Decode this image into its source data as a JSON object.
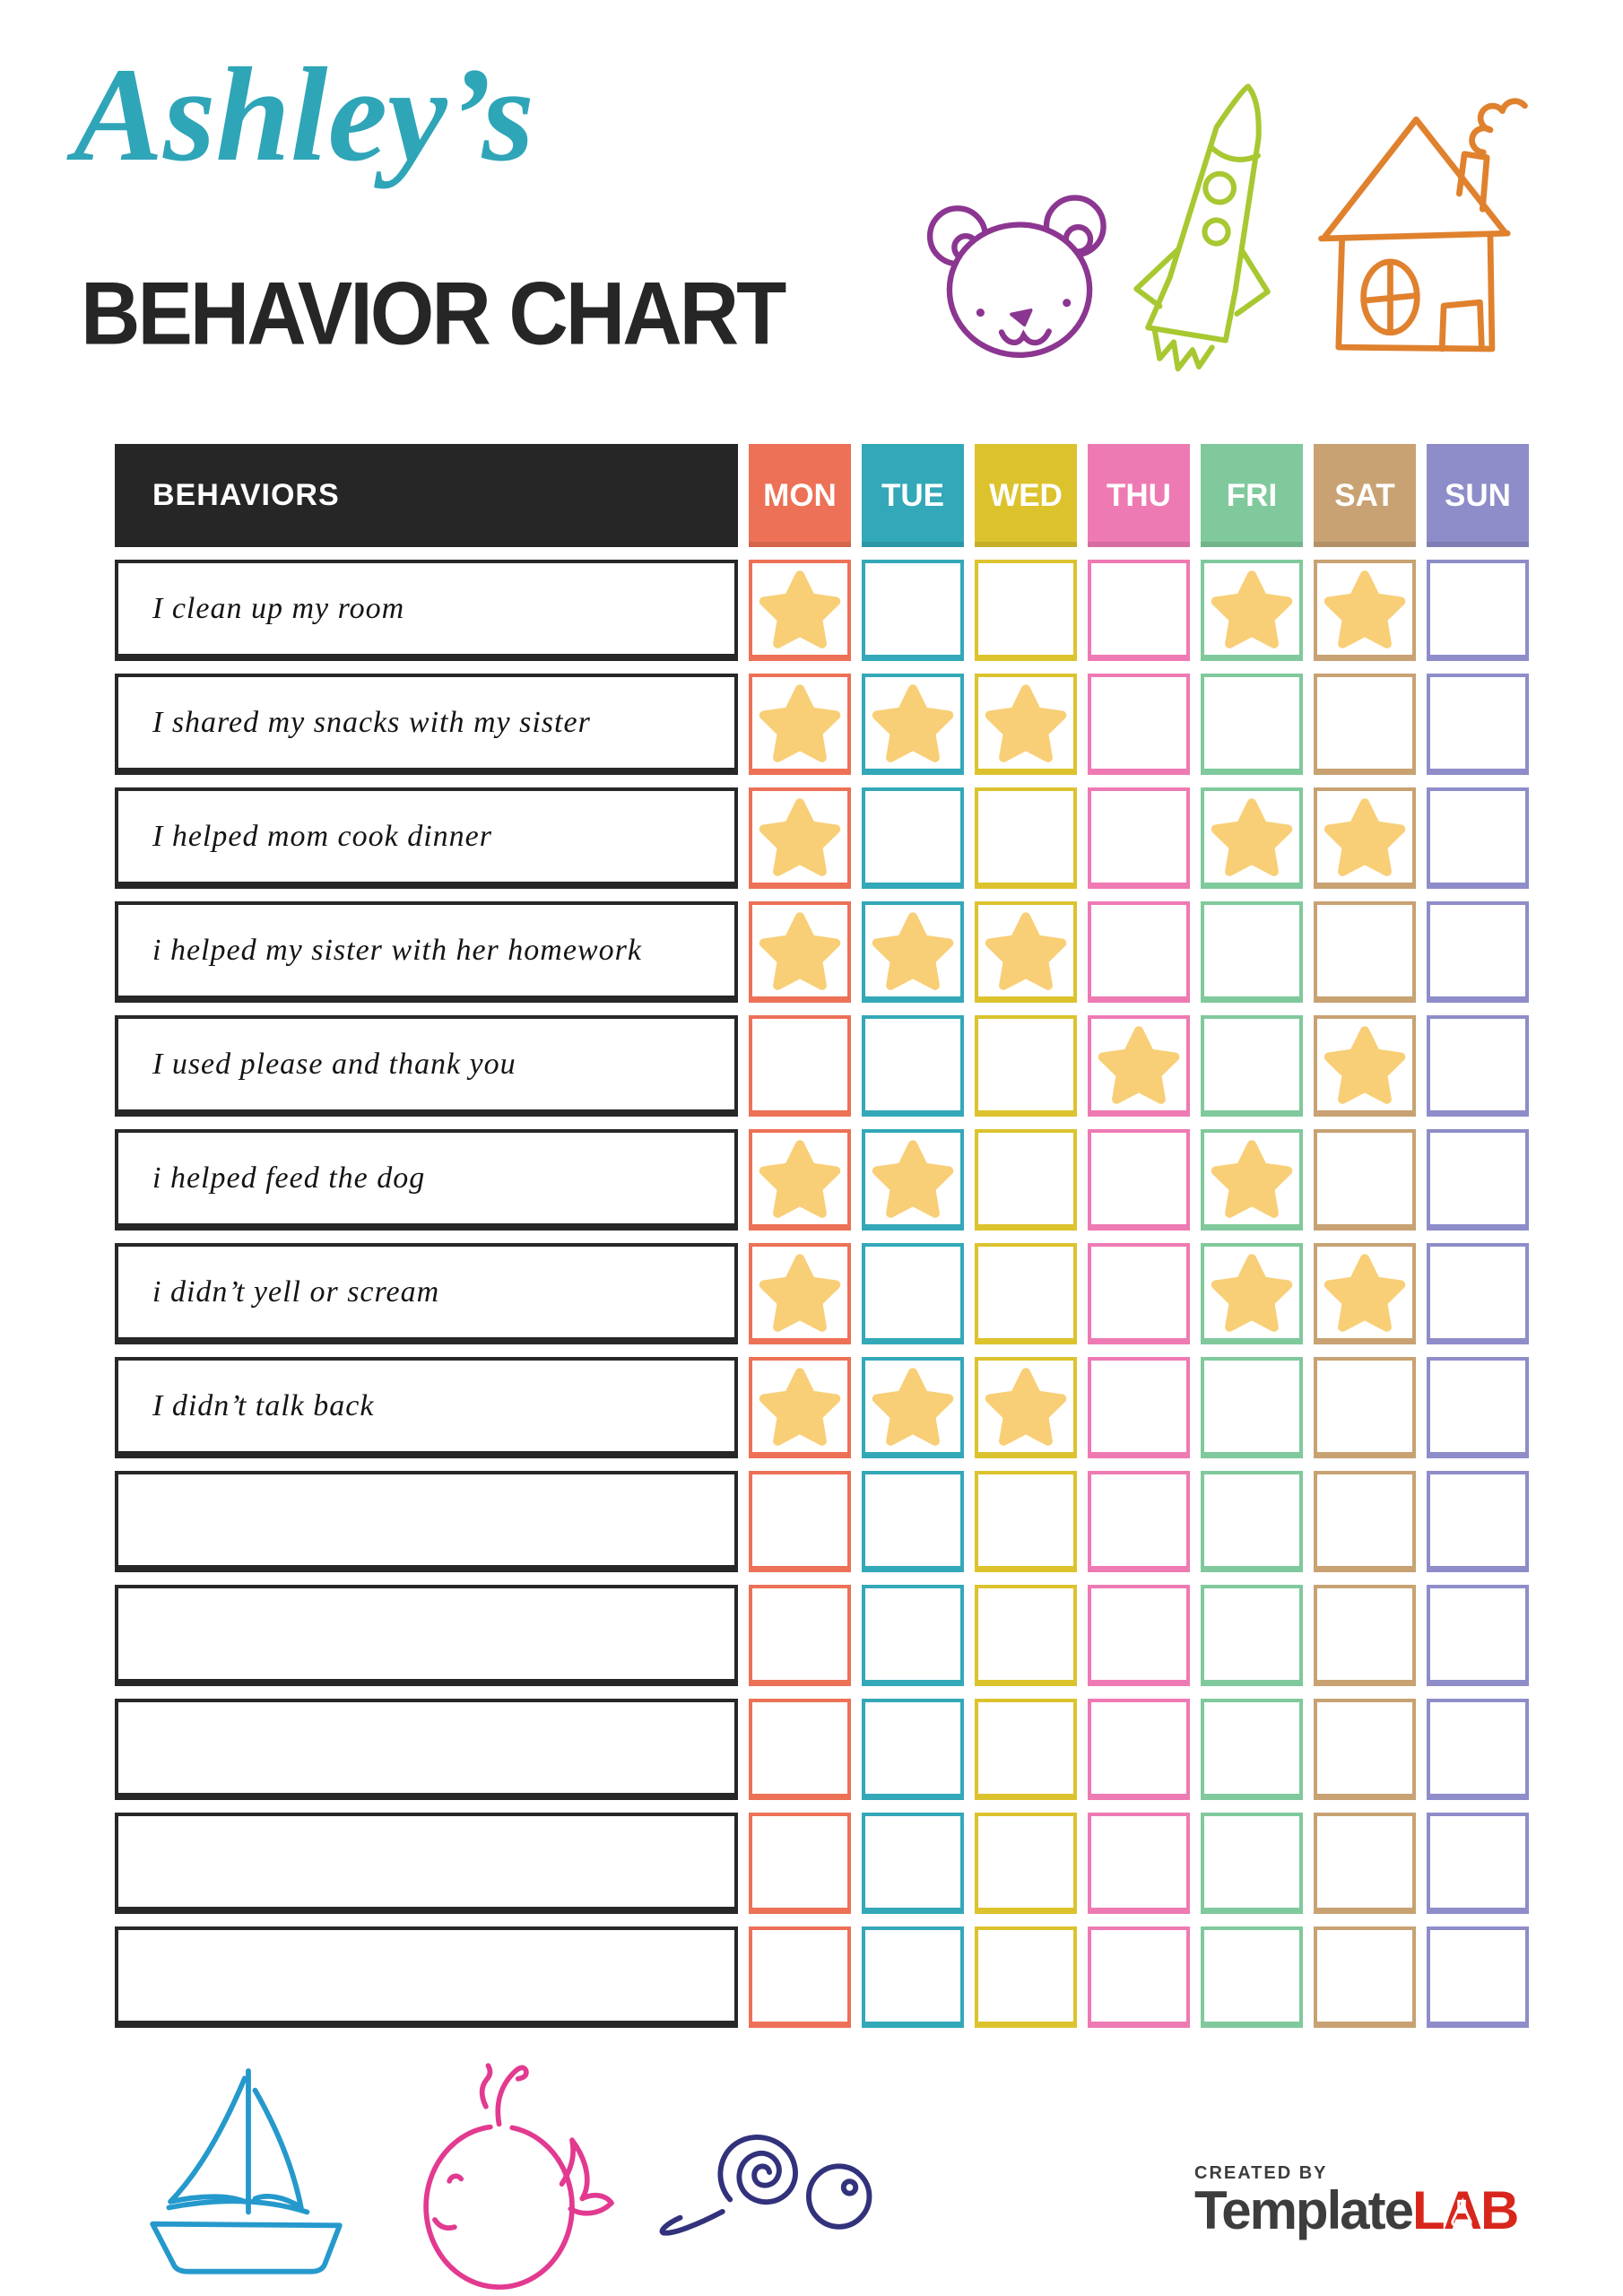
{
  "header": {
    "title_script": "Ashley’s",
    "title_main": "BEHAVIOR CHART",
    "title_script_color": "#2fa5b8",
    "title_main_color": "#262626"
  },
  "doodles": {
    "bear_color": "#8b3690",
    "rocket_color": "#a8c832",
    "house_color": "#e0812e",
    "boat_color": "#2599cc",
    "whale_color": "#e23a90",
    "snail_color": "#32327c"
  },
  "table": {
    "behaviors_header": "BEHAVIORS",
    "header_bg": "#262626",
    "star_color": "#f8cf77",
    "days": [
      {
        "label": "MON",
        "color": "#ec7156"
      },
      {
        "label": "TUE",
        "color": "#33a8b8"
      },
      {
        "label": "WED",
        "color": "#dcc32e"
      },
      {
        "label": "THU",
        "color": "#ee7ab3"
      },
      {
        "label": "FRI",
        "color": "#80c99c"
      },
      {
        "label": "SAT",
        "color": "#c8a273"
      },
      {
        "label": "SUN",
        "color": "#8e8dc9"
      }
    ],
    "rows": [
      {
        "label": "I clean up my room",
        "stars": [
          "MON",
          "FRI",
          "SAT"
        ]
      },
      {
        "label": "I shared my snacks with my sister",
        "stars": [
          "MON",
          "TUE",
          "WED"
        ]
      },
      {
        "label": "I helped mom cook dinner",
        "stars": [
          "MON",
          "FRI",
          "SAT"
        ]
      },
      {
        "label": "i helped my sister with her homework",
        "stars": [
          "MON",
          "TUE",
          "WED"
        ]
      },
      {
        "label": "I used please and thank you",
        "stars": [
          "THU",
          "SAT"
        ]
      },
      {
        "label": "i helped feed the dog",
        "stars": [
          "MON",
          "TUE",
          "FRI"
        ]
      },
      {
        "label": "i didn’t yell or scream",
        "stars": [
          "MON",
          "FRI",
          "SAT"
        ]
      },
      {
        "label": "I didn’t talk back",
        "stars": [
          "MON",
          "TUE",
          "WED"
        ]
      },
      {
        "label": "",
        "stars": []
      },
      {
        "label": "",
        "stars": []
      },
      {
        "label": "",
        "stars": []
      },
      {
        "label": "",
        "stars": []
      },
      {
        "label": "",
        "stars": []
      }
    ]
  },
  "footer": {
    "created_by": "CREATED BY",
    "brand_template": "Template",
    "brand_lab": "LAB",
    "brand_template_color": "#3d3d3d",
    "brand_lab_color": "#d9261c"
  }
}
